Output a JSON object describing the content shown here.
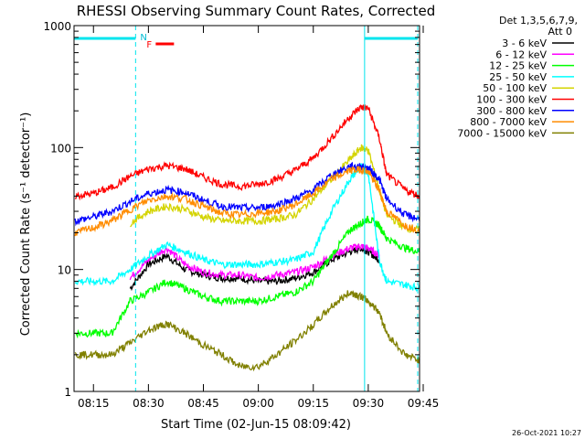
{
  "chart_data": {
    "type": "line",
    "title": "RHESSI Observing Summary Count Rates, Corrected",
    "xlabel": "Start Time (02-Jun-15 08:09:42)",
    "ylabel": "Corrected Count Rate (s⁻¹ detector⁻¹)",
    "y_scale": "log",
    "ylim": [
      1,
      1000
    ],
    "xlim_minutes_after_08:00": [
      9.7,
      104
    ],
    "x_ticks": [
      "08:15",
      "08:30",
      "08:45",
      "09:00",
      "09:15",
      "09:30",
      "09:45"
    ],
    "y_ticks": [
      "1",
      "10",
      "100",
      "1000"
    ],
    "legend": {
      "header": "Det 1,3,5,6,7,9,",
      "attenuator": "Att 0",
      "placement": "top-right outside plot"
    },
    "annotations": {
      "night_marker": "N",
      "flare_marker": "F",
      "timestamp": "26-Oct-2021 10:27"
    },
    "x_minutes": [
      10,
      15,
      20,
      25,
      30,
      35,
      40,
      45,
      50,
      55,
      60,
      65,
      70,
      75,
      80,
      85,
      88,
      90,
      93,
      95,
      100,
      104
    ],
    "series": [
      {
        "name": "3 - 6 keV",
        "color": "#000000",
        "values": [
          null,
          null,
          null,
          7.0,
          11,
          13,
          10,
          9,
          8.5,
          8.5,
          8,
          8,
          8.5,
          9.5,
          12,
          14,
          15,
          14,
          12,
          null,
          null,
          null
        ]
      },
      {
        "name": "6 - 12 keV",
        "color": "#ff00ff",
        "values": [
          null,
          null,
          null,
          8.5,
          12,
          15,
          11,
          9.5,
          9,
          9,
          8.5,
          9,
          9.5,
          10.5,
          13,
          15,
          15.5,
          15,
          13,
          null,
          null,
          null
        ]
      },
      {
        "name": "12 - 25 keV",
        "color": "#00ff00",
        "values": [
          3,
          3,
          3,
          5.5,
          6.5,
          8,
          7,
          6,
          5.5,
          5.5,
          5.5,
          6,
          6.5,
          8,
          13,
          21,
          24,
          26,
          23,
          18,
          15,
          14
        ]
      },
      {
        "name": "25 - 50 keV",
        "color": "#00ffff",
        "values": [
          8,
          8,
          8,
          10,
          13,
          16,
          14,
          12,
          11,
          11,
          11,
          11.5,
          12,
          14,
          30,
          55,
          70,
          62,
          12,
          8,
          7.5,
          7
        ]
      },
      {
        "name": "50 - 100 keV",
        "color": "#d4d400",
        "values": [
          null,
          null,
          null,
          24,
          30,
          33,
          31,
          27,
          25,
          25,
          25,
          26,
          28,
          38,
          55,
          80,
          100,
          95,
          45,
          28,
          22,
          21
        ]
      },
      {
        "name": "100 - 300 keV",
        "color": "#ff0000",
        "values": [
          40,
          42,
          47,
          58,
          67,
          71,
          67,
          57,
          50,
          48,
          50,
          55,
          65,
          82,
          120,
          180,
          215,
          210,
          120,
          60,
          45,
          40
        ]
      },
      {
        "name": "300 - 800 keV",
        "color": "#0000ff",
        "values": [
          25,
          27,
          30,
          36,
          42,
          45,
          43,
          37,
          33,
          32,
          32,
          34,
          38,
          45,
          60,
          70,
          70,
          68,
          55,
          38,
          28,
          26
        ]
      },
      {
        "name": "800 - 7000 keV",
        "color": "#ff8c00",
        "values": [
          20,
          22,
          25,
          31,
          37,
          40,
          38,
          33,
          29,
          28,
          29,
          30,
          34,
          42,
          55,
          65,
          66,
          63,
          45,
          30,
          23,
          21
        ]
      },
      {
        "name": "7000 - 15000 keV",
        "color": "#808000",
        "values": [
          2,
          2,
          2,
          2.5,
          3.2,
          3.6,
          3,
          2.4,
          2,
          1.6,
          1.6,
          2,
          2.6,
          3.5,
          5,
          6.5,
          6,
          5.5,
          4.5,
          3,
          2,
          1.8
        ]
      }
    ]
  }
}
